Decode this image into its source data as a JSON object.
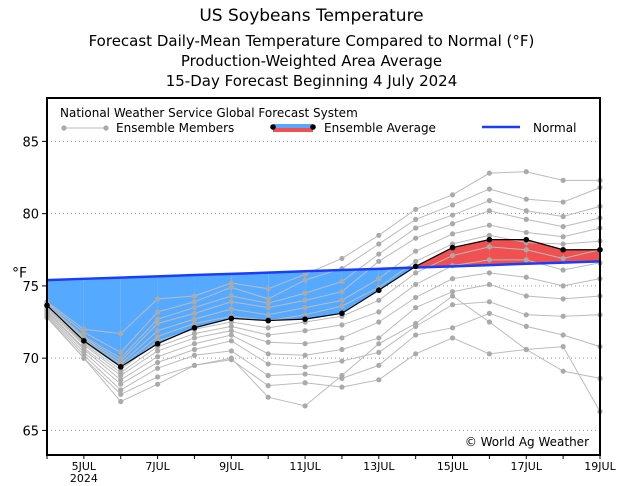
{
  "chart_data": {
    "type": "line",
    "title": "US Soybeans Temperature",
    "subtitles": [
      "Forecast Daily-Mean Temperature Compared to Normal (°F)",
      "Production-Weighted Area Average",
      "15-Day Forecast Beginning 4 July 2024"
    ],
    "ylabel": "°F",
    "xlabel": "",
    "ylim": [
      63.3,
      88
    ],
    "yticks": [
      65,
      70,
      75,
      80,
      85
    ],
    "x": [
      "4JUL",
      "5JUL",
      "6JUL",
      "7JUL",
      "8JUL",
      "9JUL",
      "10JUL",
      "11JUL",
      "12JUL",
      "13JUL",
      "14JUL",
      "15JUL",
      "16JUL",
      "17JUL",
      "18JUL",
      "19JUL"
    ],
    "xtick_labels": [
      {
        "i": 1,
        "label": "5JUL",
        "sub": "2024"
      },
      {
        "i": 3,
        "label": "7JUL"
      },
      {
        "i": 5,
        "label": "9JUL"
      },
      {
        "i": 7,
        "label": "11JUL"
      },
      {
        "i": 9,
        "label": "13JUL"
      },
      {
        "i": 11,
        "label": "15JUL"
      },
      {
        "i": 13,
        "label": "17JUL"
      },
      {
        "i": 15,
        "label": "19JUL"
      }
    ],
    "grid": "horizontal dotted",
    "legend_placement": "top",
    "legend_title": "National Weather Service Global Forecast System",
    "series": [
      {
        "name": "Ensemble Average",
        "color": "#000000",
        "values": [
          73.65,
          71.2,
          69.4,
          71.0,
          72.1,
          72.75,
          72.6,
          72.7,
          73.1,
          74.7,
          76.35,
          77.65,
          78.2,
          78.2,
          77.5,
          77.5
        ]
      },
      {
        "name": "Normal",
        "color": "#1a3cff",
        "values": [
          75.4,
          75.49,
          75.57,
          75.66,
          75.75,
          75.83,
          75.92,
          76.01,
          76.1,
          76.18,
          76.27,
          76.35,
          76.44,
          76.53,
          76.61,
          76.7
        ]
      }
    ],
    "ensemble_members": {
      "name": "Ensemble Members",
      "color": "#aaaaaa",
      "values": [
        [
          73.9,
          72.0,
          71.7,
          74.1,
          74.3,
          75.2,
          74.8,
          75.8,
          76.9,
          78.5,
          80.3,
          81.3,
          82.8,
          82.9,
          82.3,
          82.3
        ],
        [
          73.8,
          71.8,
          70.4,
          73.2,
          73.9,
          74.9,
          74.1,
          75.4,
          76.2,
          77.9,
          79.6,
          80.6,
          81.7,
          81.0,
          80.8,
          81.8
        ],
        [
          73.7,
          71.5,
          70.0,
          72.7,
          73.5,
          74.3,
          73.8,
          74.5,
          75.3,
          77.2,
          79.0,
          79.9,
          80.9,
          80.2,
          79.8,
          80.5
        ],
        [
          73.6,
          71.4,
          69.8,
          72.4,
          73.1,
          73.9,
          73.5,
          74.0,
          74.6,
          76.7,
          78.3,
          79.3,
          80.2,
          79.6,
          79.1,
          79.7
        ],
        [
          73.6,
          71.3,
          69.6,
          71.9,
          72.7,
          73.4,
          73.0,
          73.5,
          74.0,
          75.5,
          77.4,
          78.6,
          79.2,
          78.7,
          78.4,
          79.0
        ],
        [
          73.5,
          71.1,
          69.4,
          71.5,
          72.4,
          72.9,
          72.6,
          73.0,
          73.6,
          74.9,
          76.7,
          77.9,
          78.5,
          78.0,
          77.9,
          78.1
        ],
        [
          73.5,
          71.0,
          69.2,
          71.2,
          72.0,
          72.5,
          72.1,
          72.5,
          72.9,
          74.0,
          75.9,
          77.1,
          77.7,
          77.5,
          76.9,
          77.5
        ],
        [
          73.4,
          70.9,
          69.0,
          70.8,
          71.7,
          72.2,
          71.6,
          71.9,
          72.3,
          73.2,
          75.1,
          76.4,
          76.8,
          76.8,
          76.1,
          76.6
        ],
        [
          73.3,
          70.7,
          68.8,
          70.5,
          71.4,
          71.9,
          71.1,
          71.0,
          71.4,
          72.5,
          74.2,
          75.5,
          75.9,
          75.6,
          75.0,
          75.5
        ],
        [
          73.2,
          70.6,
          68.5,
          70.1,
          71.0,
          71.6,
          70.3,
          70.2,
          70.6,
          71.4,
          73.5,
          74.6,
          75.1,
          74.3,
          74.1,
          74.3
        ],
        [
          73.1,
          70.4,
          68.2,
          69.7,
          70.6,
          71.2,
          69.6,
          69.4,
          69.8,
          70.4,
          72.2,
          73.7,
          73.9,
          73.0,
          72.9,
          73.0
        ],
        [
          73.0,
          70.2,
          67.8,
          69.3,
          70.2,
          70.5,
          68.8,
          68.9,
          68.6,
          69.5,
          71.6,
          72.1,
          73.1,
          72.2,
          71.6,
          70.8
        ],
        [
          72.9,
          70.0,
          67.5,
          68.7,
          69.5,
          69.9,
          68.1,
          68.3,
          68.0,
          68.5,
          70.3,
          71.4,
          70.3,
          70.6,
          69.1,
          68.6
        ],
        [
          72.8,
          70.0,
          67.0,
          68.2,
          69.5,
          70.0,
          67.3,
          66.7,
          68.8,
          71.0,
          72.4,
          74.3,
          72.5,
          70.6,
          70.8,
          66.3
        ]
      ]
    },
    "fill_below_normal_color": "#55aaff",
    "fill_above_normal_color": "#f05050",
    "annotation": "© World Ag Weather"
  }
}
